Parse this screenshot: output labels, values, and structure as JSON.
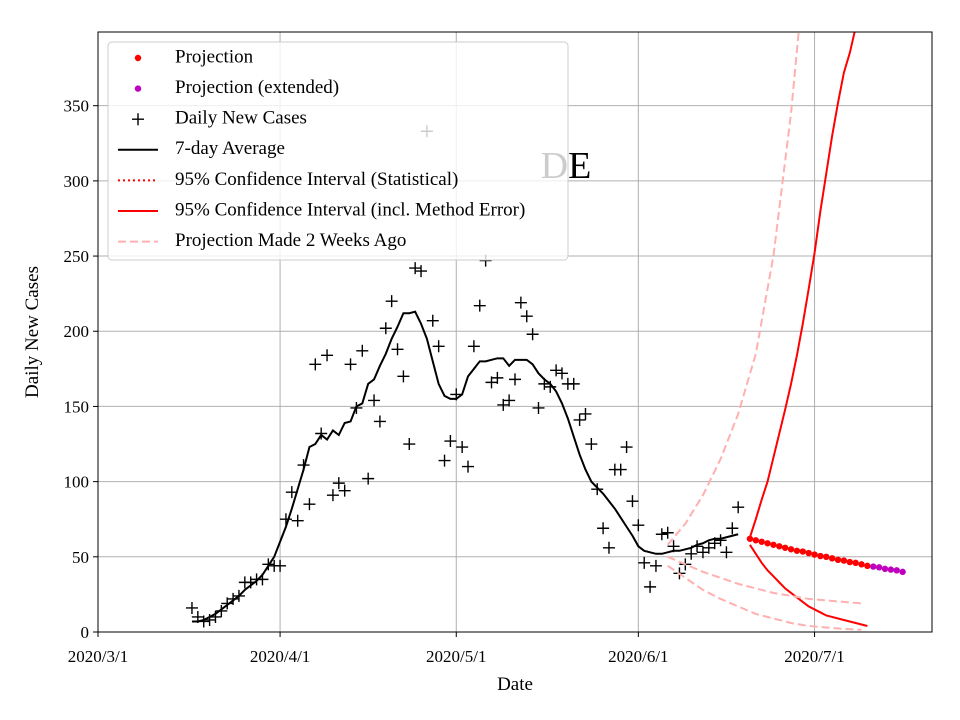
{
  "chart_data": {
    "type": "line",
    "title": "DE",
    "x_label": "Date",
    "y_label": "Daily New Cases",
    "xlim": [
      "2020/3/1",
      "2020/7/21"
    ],
    "xticks": [
      "2020/3/1",
      "2020/4/1",
      "2020/5/1",
      "2020/6/1",
      "2020/7/1"
    ],
    "ylim": [
      0,
      399
    ],
    "yticks": [
      0,
      50,
      100,
      150,
      200,
      250,
      300,
      350
    ],
    "grid": true,
    "legend": "upper left",
    "x": [
      "2020/3/17",
      "2020/3/18",
      "2020/3/19",
      "2020/3/20",
      "2020/3/21",
      "2020/3/22",
      "2020/3/23",
      "2020/3/24",
      "2020/3/25",
      "2020/3/26",
      "2020/3/27",
      "2020/3/28",
      "2020/3/29",
      "2020/3/30",
      "2020/3/31",
      "2020/4/1",
      "2020/4/2",
      "2020/4/3",
      "2020/4/4",
      "2020/4/5",
      "2020/4/6",
      "2020/4/7",
      "2020/4/8",
      "2020/4/9",
      "2020/4/10",
      "2020/4/11",
      "2020/4/12",
      "2020/4/13",
      "2020/4/14",
      "2020/4/15",
      "2020/4/16",
      "2020/4/17",
      "2020/4/18",
      "2020/4/19",
      "2020/4/20",
      "2020/4/21",
      "2020/4/22",
      "2020/4/23",
      "2020/4/24",
      "2020/4/25",
      "2020/4/26",
      "2020/4/27",
      "2020/4/28",
      "2020/4/29",
      "2020/4/30",
      "2020/5/1",
      "2020/5/2",
      "2020/5/3",
      "2020/5/4",
      "2020/5/5",
      "2020/5/6",
      "2020/5/7",
      "2020/5/8",
      "2020/5/9",
      "2020/5/10",
      "2020/5/11",
      "2020/5/12",
      "2020/5/13",
      "2020/5/14",
      "2020/5/15",
      "2020/5/16",
      "2020/5/17",
      "2020/5/18",
      "2020/5/19",
      "2020/5/20",
      "2020/5/21",
      "2020/5/22",
      "2020/5/23",
      "2020/5/24",
      "2020/5/25",
      "2020/5/26",
      "2020/5/27",
      "2020/5/28",
      "2020/5/29",
      "2020/5/30",
      "2020/5/31",
      "2020/6/1",
      "2020/6/2",
      "2020/6/3",
      "2020/6/4",
      "2020/6/5",
      "2020/6/6",
      "2020/6/7",
      "2020/6/8",
      "2020/6/9",
      "2020/6/10",
      "2020/6/11",
      "2020/6/12",
      "2020/6/13",
      "2020/6/14",
      "2020/6/15",
      "2020/6/16",
      "2020/6/17",
      "2020/6/18"
    ],
    "series": [
      {
        "name": "Projection",
        "color": "#ff0000",
        "marker": "dot",
        "x": [
          "2020/6/20",
          "2020/6/21",
          "2020/6/22",
          "2020/6/23",
          "2020/6/24",
          "2020/6/25",
          "2020/6/26",
          "2020/6/27",
          "2020/6/28",
          "2020/6/29",
          "2020/6/30",
          "2020/7/1",
          "2020/7/2",
          "2020/7/3",
          "2020/7/4",
          "2020/7/5",
          "2020/7/6",
          "2020/7/7",
          "2020/7/8",
          "2020/7/9",
          "2020/7/10"
        ],
        "values": [
          62,
          61,
          60,
          59,
          58,
          57,
          56,
          55,
          54,
          53.5,
          52.5,
          51.5,
          50.5,
          50,
          49,
          48,
          47.5,
          46.5,
          46,
          45,
          44
        ]
      },
      {
        "name": "Projection (extended)",
        "color": "#bf00bf",
        "marker": "dot",
        "x": [
          "2020/7/11",
          "2020/7/12",
          "2020/7/13",
          "2020/7/14",
          "2020/7/15",
          "2020/7/16"
        ],
        "values": [
          43.5,
          43,
          42,
          41.5,
          41,
          40
        ]
      },
      {
        "name": "Daily New Cases",
        "color": "#000000",
        "marker": "plus",
        "values": [
          16,
          10,
          7,
          8,
          10,
          14,
          19,
          22,
          24,
          33,
          33,
          35,
          35,
          45,
          44,
          44,
          75,
          93,
          74,
          111,
          85,
          178,
          132,
          184,
          91,
          99,
          94,
          178,
          149,
          187,
          102,
          154,
          140,
          202,
          220,
          188,
          170,
          125,
          242,
          240,
          333,
          207,
          190,
          114,
          127,
          158,
          123,
          110,
          190,
          217,
          247,
          166,
          169,
          151,
          154,
          168,
          219,
          210,
          198,
          149,
          165,
          163,
          174,
          172,
          165,
          165,
          141,
          145,
          125,
          95,
          69,
          56,
          108,
          108,
          123,
          87,
          71,
          46,
          30,
          44,
          65,
          66,
          57,
          39,
          45,
          52,
          57,
          53,
          56,
          59,
          61,
          53,
          69,
          83
        ]
      },
      {
        "name": "7-day Average",
        "color": "#000000",
        "line": "solid",
        "values": [
          7,
          7,
          8,
          10,
          12,
          15,
          18,
          21,
          24,
          28,
          31,
          34,
          38,
          44,
          50,
          60,
          70,
          82,
          95,
          108,
          123,
          125,
          131,
          128,
          134,
          131,
          139,
          140,
          150,
          152,
          165,
          168,
          177,
          185,
          195,
          203,
          212,
          212,
          213,
          205,
          195,
          180,
          165,
          157,
          155,
          155,
          158,
          170,
          175,
          180,
          180,
          181,
          182,
          182,
          177,
          181,
          181,
          181,
          178,
          172,
          168,
          165,
          160,
          152,
          142,
          130,
          118,
          108,
          100,
          96,
          92,
          87,
          82,
          76,
          70,
          64,
          57,
          54,
          53,
          52,
          52,
          53,
          54,
          54,
          55,
          56,
          58,
          59,
          61,
          62,
          62,
          63,
          64,
          65
        ]
      },
      {
        "name": "95% Confidence Interval (Statistical)",
        "color": "#ff0000",
        "line": "dotted"
      },
      {
        "name": "95% Confidence Interval (incl. Method Error)",
        "color": "#ff0000",
        "line": "solid",
        "x": [
          "2020/6/20",
          "2020/6/21",
          "2020/6/22",
          "2020/6/23",
          "2020/6/24",
          "2020/6/25",
          "2020/6/26",
          "2020/6/27",
          "2020/6/28",
          "2020/6/29",
          "2020/6/30",
          "2020/7/1",
          "2020/7/2",
          "2020/7/3",
          "2020/7/4",
          "2020/7/5",
          "2020/7/6",
          "2020/7/7",
          "2020/7/8",
          "2020/7/9",
          "2020/7/10"
        ],
        "lower": [
          58,
          52,
          46,
          41,
          37,
          33,
          29,
          26,
          23,
          20,
          17,
          15,
          13,
          11,
          10,
          9,
          8,
          7,
          6,
          5,
          4
        ],
        "upper": [
          63,
          75,
          88,
          100,
          116,
          132,
          148,
          165,
          184,
          205,
          228,
          252,
          280,
          305,
          330,
          352,
          372,
          385,
          402,
          440,
          470
        ]
      },
      {
        "name": "Projection Made 2 Weeks Ago",
        "color": "#ffb0b0",
        "line": "dashed",
        "x": [
          "2020/6/6",
          "2020/6/9",
          "2020/6/12",
          "2020/6/15",
          "2020/6/18",
          "2020/6/21",
          "2020/6/24",
          "2020/6/27",
          "2020/6/30",
          "2020/7/3",
          "2020/7/6",
          "2020/7/9"
        ],
        "lower": [
          44,
          36,
          28,
          22,
          17,
          12,
          9,
          6,
          4,
          3,
          2,
          1.5
        ],
        "values": [
          50,
          45,
          40,
          36,
          32,
          29,
          26,
          24,
          22,
          21,
          20,
          19
        ],
        "upper": [
          58,
          72,
          91,
          115,
          145,
          185,
          250,
          345,
          470,
          null,
          null,
          null
        ]
      }
    ]
  }
}
